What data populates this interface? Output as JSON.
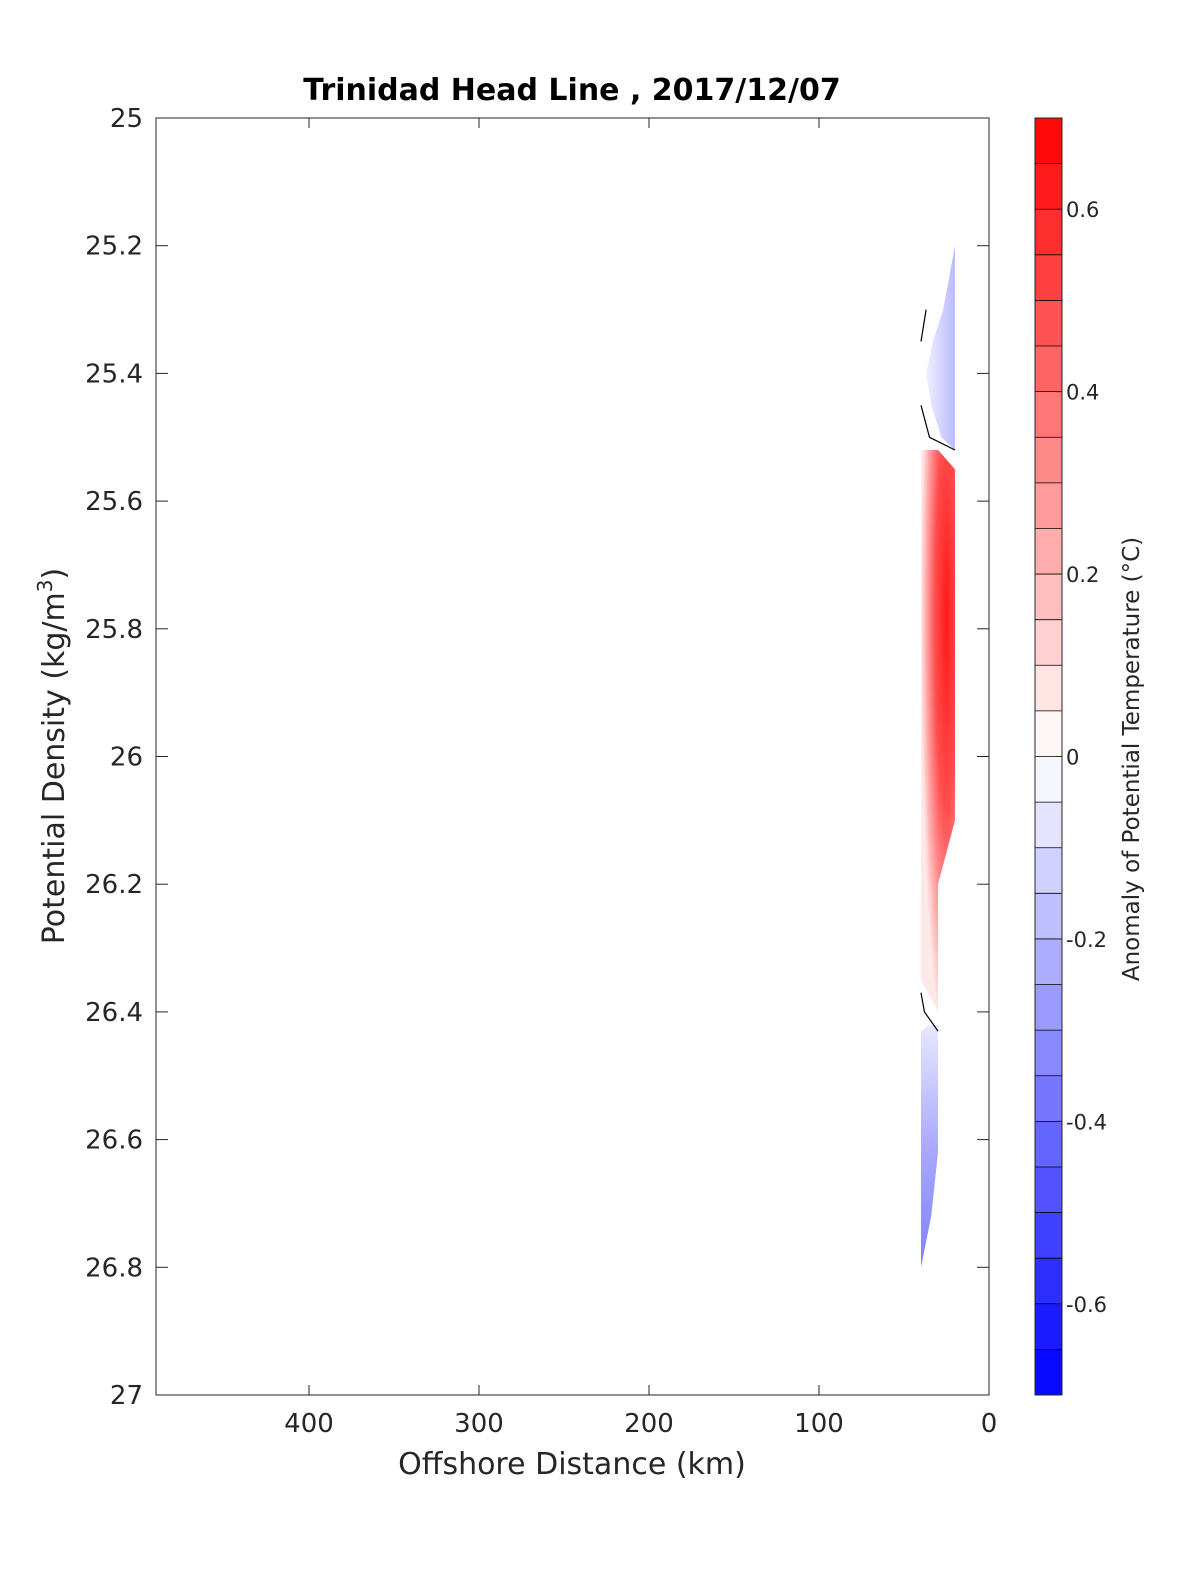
{
  "chart_data": {
    "type": "heatmap",
    "title": "Trinidad Head Line , 2017/12/07",
    "xlabel": "Offshore Distance (km)",
    "ylabel": "Potential Density (kg/m",
    "ylabel_sup": "3",
    "ylabel_end": ")",
    "colorbar_label": "Anomaly of Potential Temperature (°C)",
    "xlim": [
      490,
      0
    ],
    "x_reversed": true,
    "ylim": [
      25,
      27
    ],
    "y_reversed": true,
    "x_ticks": [
      400,
      300,
      200,
      100,
      0
    ],
    "x_tick_labels": [
      "400",
      "300",
      "200",
      "100",
      "0"
    ],
    "y_ticks": [
      25,
      25.2,
      25.4,
      25.6,
      25.8,
      26,
      26.2,
      26.4,
      26.6,
      26.8,
      27
    ],
    "y_tick_labels": [
      "25",
      "25.2",
      "25.4",
      "25.6",
      "25.8",
      "26",
      "26.2",
      "26.4",
      "26.6",
      "26.8",
      "27"
    ],
    "colorbar": {
      "range": [
        -0.7,
        0.7
      ],
      "levels": 28,
      "ticks": [
        0.6,
        0.4,
        0.2,
        0,
        -0.2,
        -0.4,
        -0.6
      ],
      "tick_labels": [
        "0.6",
        "0.4",
        "0.2",
        "0",
        "-0.2",
        "-0.4",
        "-0.6"
      ],
      "cmap": "blue-white-red",
      "neg_color": "#0000ff",
      "pos_color": "#ff0000"
    },
    "grid": false,
    "regions": [
      {
        "name": "upper-cool-patch",
        "max_anomaly": -0.15,
        "points": [
          [
            20,
            25.2
          ],
          [
            20,
            25.52
          ],
          [
            28,
            25.5
          ],
          [
            34,
            25.45
          ],
          [
            37,
            25.4
          ],
          [
            33,
            25.35
          ],
          [
            27,
            25.3
          ]
        ]
      },
      {
        "name": "warm-core-patch",
        "max_anomaly": 0.68,
        "points": [
          [
            20,
            25.55
          ],
          [
            20,
            26.1
          ],
          [
            30,
            26.2
          ],
          [
            30,
            26.4
          ],
          [
            40,
            26.35
          ],
          [
            40,
            25.52
          ],
          [
            30,
            25.52
          ]
        ]
      },
      {
        "name": "lower-cool-patch",
        "max_anomaly": -0.35,
        "points": [
          [
            30,
            26.42
          ],
          [
            30,
            26.62
          ],
          [
            34,
            26.72
          ],
          [
            40,
            26.8
          ],
          [
            40,
            26.43
          ],
          [
            35,
            26.42
          ]
        ]
      }
    ],
    "zero_contours": [
      [
        [
          40,
          25.35
        ],
        [
          37,
          25.3
        ]
      ],
      [
        [
          40,
          25.45
        ],
        [
          35,
          25.5
        ],
        [
          20,
          25.52
        ]
      ],
      [
        [
          40,
          26.37
        ],
        [
          38,
          26.4
        ],
        [
          30,
          26.43
        ]
      ]
    ]
  }
}
